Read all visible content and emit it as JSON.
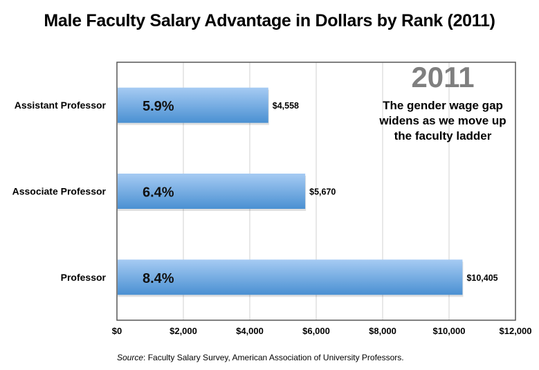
{
  "chart_data": {
    "type": "bar",
    "orientation": "horizontal",
    "title": "Male Faculty Salary Advantage in Dollars by Rank (2011)",
    "categories": [
      "Assistant Professor",
      "Associate Professor",
      "Professor"
    ],
    "values": [
      4558,
      5670,
      10405
    ],
    "data_labels": [
      "$4,558",
      "$5,670",
      "$10,405"
    ],
    "bar_annotations": [
      "5.9%",
      "6.4%",
      "8.4%"
    ],
    "xlim": [
      0,
      12000
    ],
    "x_ticks": [
      0,
      2000,
      4000,
      6000,
      8000,
      10000,
      12000
    ],
    "x_tick_labels": [
      "$0",
      "$2,000",
      "$4,000",
      "$6,000",
      "$8,000",
      "$10,000",
      "$12,000"
    ],
    "grid": "vertical",
    "bar_color_top": "#a6cbf3",
    "bar_color_bottom": "#4a90d2",
    "annotation": {
      "year": "2011",
      "text": "The gender wage gap widens as we move up the faculty ladder"
    },
    "source_label": "Source",
    "source_text": ": Faculty Salary Survey, American Association of University Professors."
  }
}
